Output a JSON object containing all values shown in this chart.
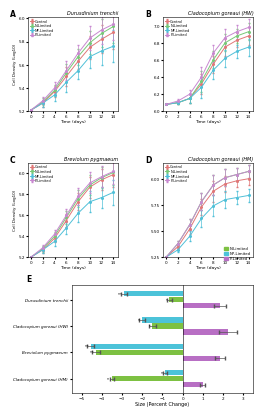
{
  "title_A": "Durusdinium trenchii",
  "title_B": "Cladocopium goreaui (HW)",
  "title_C": "Breviolum pygmaeum",
  "title_D": "Cladocopium goreaui (HM)",
  "time_days": [
    0,
    2,
    4,
    6,
    8,
    10,
    12,
    14
  ],
  "legend_labels": [
    "Control",
    "N-Limited",
    "NP-Limited",
    "P-Limited"
  ],
  "line_colors": [
    "#e07878",
    "#78c878",
    "#50c0d8",
    "#c888d0"
  ],
  "ylabel": "Cell Density (Log10)",
  "xlabel": "Time (days)",
  "panel_A": {
    "control": [
      5.21,
      5.27,
      5.37,
      5.5,
      5.63,
      5.75,
      5.82,
      5.88
    ],
    "n_limited": [
      5.21,
      5.28,
      5.38,
      5.53,
      5.67,
      5.79,
      5.87,
      5.93
    ],
    "np_limited": [
      5.21,
      5.27,
      5.34,
      5.45,
      5.55,
      5.67,
      5.72,
      5.76
    ],
    "p_limited": [
      5.21,
      5.29,
      5.4,
      5.55,
      5.7,
      5.83,
      5.9,
      5.95
    ],
    "ylim": [
      5.2,
      6.01
    ],
    "yticks": [
      5.2,
      5.4,
      5.6,
      5.8,
      6.0
    ],
    "errs": [
      0.0,
      0.03,
      0.05,
      0.08,
      0.07,
      0.1,
      0.12,
      0.14
    ]
  },
  "panel_B": {
    "control": [
      6.08,
      6.1,
      6.15,
      6.32,
      6.55,
      6.75,
      6.83,
      6.88
    ],
    "n_limited": [
      6.08,
      6.1,
      6.15,
      6.35,
      6.6,
      6.8,
      6.88,
      6.93
    ],
    "np_limited": [
      6.08,
      6.1,
      6.15,
      6.28,
      6.48,
      6.62,
      6.7,
      6.75
    ],
    "p_limited": [
      6.08,
      6.12,
      6.2,
      6.4,
      6.68,
      6.86,
      6.93,
      6.98
    ],
    "ylim": [
      6.0,
      7.1
    ],
    "yticks": [
      6.0,
      6.2,
      6.4,
      6.6,
      6.8,
      7.0
    ],
    "errs": [
      0.0,
      0.02,
      0.05,
      0.12,
      0.1,
      0.1,
      0.08,
      0.1
    ]
  },
  "panel_C": {
    "control": [
      5.2,
      5.27,
      5.38,
      5.55,
      5.73,
      5.87,
      5.94,
      5.99
    ],
    "n_limited": [
      5.2,
      5.28,
      5.4,
      5.58,
      5.76,
      5.89,
      5.96,
      6.01
    ],
    "np_limited": [
      5.2,
      5.27,
      5.35,
      5.48,
      5.62,
      5.73,
      5.77,
      5.82
    ],
    "p_limited": [
      5.2,
      5.29,
      5.42,
      5.6,
      5.78,
      5.91,
      5.97,
      6.02
    ],
    "ylim": [
      5.2,
      6.1
    ],
    "yticks": [
      5.2,
      5.4,
      5.6,
      5.8,
      6.0
    ],
    "errs": [
      0.0,
      0.03,
      0.04,
      0.06,
      0.08,
      0.1,
      0.1,
      0.12
    ]
  },
  "panel_D": {
    "control": [
      5.25,
      5.35,
      5.52,
      5.73,
      5.88,
      5.95,
      5.98,
      6.0
    ],
    "n_limited": [
      5.25,
      5.38,
      5.56,
      5.78,
      5.94,
      6.01,
      6.04,
      6.07
    ],
    "np_limited": [
      5.25,
      5.32,
      5.45,
      5.62,
      5.74,
      5.8,
      5.82,
      5.84
    ],
    "p_limited": [
      5.25,
      5.38,
      5.56,
      5.78,
      5.94,
      6.01,
      6.04,
      6.07
    ],
    "ylim": [
      5.25,
      6.15
    ],
    "yticks": [
      5.25,
      5.5,
      5.75,
      6.0
    ],
    "errs": [
      0.0,
      0.02,
      0.05,
      0.08,
      0.1,
      0.08,
      0.06,
      0.06
    ]
  },
  "bar_species": [
    "Durusdinium trenchii",
    "Cladocopium goreaui (HW)",
    "Breviolum pygmaeum",
    "Cladocopium goreaui (HM)"
  ],
  "bar_data": {
    "N-Limited": [
      -0.65,
      -1.5,
      -4.3,
      -3.5
    ],
    "NP-Limited": [
      -2.9,
      -2.0,
      -4.55,
      -0.85
    ],
    "P-Limited": [
      1.85,
      2.25,
      1.85,
      1.0
    ]
  },
  "bar_errors": {
    "N-Limited": [
      0.12,
      0.18,
      0.2,
      0.12
    ],
    "NP-Limited": [
      0.15,
      0.15,
      0.18,
      0.1
    ],
    "P-Limited": [
      0.3,
      0.45,
      0.25,
      0.12
    ]
  },
  "bar_colors": {
    "N-Limited": "#7dc142",
    "NP-Limited": "#4cc3d9",
    "P-Limited": "#b86fc4"
  },
  "bar_xlabel": "Size (Percent Change)",
  "sig_markers": {
    "Durusdinium trenchii": {
      "N-Limited": "*",
      "NP-Limited": "***"
    },
    "Cladocopium goreaui (HW)": {
      "N-Limited": "*",
      "NP-Limited": "**"
    },
    "Breviolum pygmaeum": {
      "N-Limited": "***",
      "NP-Limited": "***"
    },
    "Cladocopium goreaui (HM)": {
      "N-Limited": "**",
      "NP-Limited": "**"
    }
  },
  "background_color": "#ffffff"
}
